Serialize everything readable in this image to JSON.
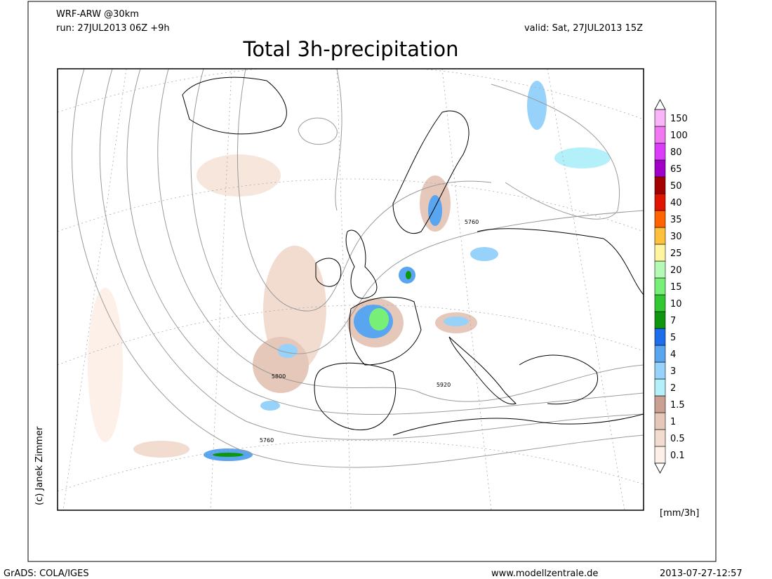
{
  "header": {
    "model": "WRF-ARW @30km",
    "run": "run: 27JUL2013 06Z +9h",
    "valid": "valid: Sat, 27JUL2013 15Z",
    "title": "Total 3h-precipitation"
  },
  "map": {
    "contour_labels": [
      "5760",
      "5800",
      "5920",
      "5760"
    ],
    "credit": "(c) Janek Zimmer"
  },
  "colorbar": {
    "levels": [
      "0.1",
      "0.5",
      "1",
      "1.5",
      "2",
      "3",
      "4",
      "5",
      "7",
      "10",
      "15",
      "20",
      "25",
      "30",
      "35",
      "40",
      "50",
      "65",
      "80",
      "100",
      "150"
    ],
    "colors": [
      "#fcf0e8",
      "#f2dccf",
      "#e6c8ba",
      "#c9a092",
      "#b4f0fa",
      "#96d2fa",
      "#5aa5f0",
      "#1e6eeb",
      "#0f960f",
      "#32c832",
      "#78f078",
      "#b4fab4",
      "#fff5a0",
      "#ffc03c",
      "#ff6400",
      "#e11400",
      "#a50000",
      "#a000c8",
      "#dc3cfa",
      "#f078f0",
      "#fab4fa"
    ],
    "unit": "[mm/3h]"
  },
  "footer": {
    "left": "GrADS: COLA/IGES",
    "center": "www.modellzentrale.de",
    "right": "2013-07-27-12:57"
  }
}
